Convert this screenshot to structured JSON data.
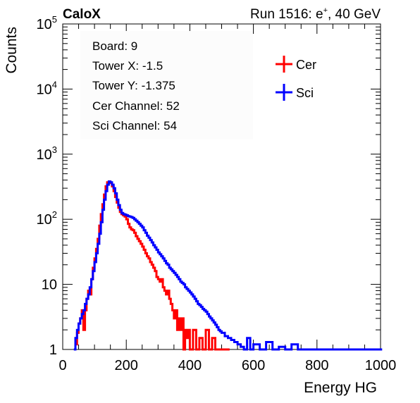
{
  "header": {
    "left": "CaloX",
    "right_prefix": "Run 1516: e",
    "right_sup": "+",
    "right_suffix": ", 40 GeV"
  },
  "info_box": [
    "Board: 9",
    "Tower X: -1.5",
    "Tower Y: -1.375",
    "Cer Channel: 52",
    "Sci Channel: 54"
  ],
  "chart_data": {
    "type": "line",
    "title": "",
    "xlabel": "Energy HG",
    "ylabel": "Counts",
    "xlim": [
      0,
      1000
    ],
    "ylim": [
      1,
      100000
    ],
    "ylog": true,
    "x_ticks": [
      "0",
      "200",
      "400",
      "600",
      "800",
      "1000"
    ],
    "y_ticks": [
      {
        "base": "1",
        "exp": ""
      },
      {
        "base": "10",
        "exp": ""
      },
      {
        "base": "10",
        "exp": "2"
      },
      {
        "base": "10",
        "exp": "3"
      },
      {
        "base": "10",
        "exp": "4"
      },
      {
        "base": "10",
        "exp": "5"
      }
    ],
    "legend_position": "top-right",
    "series": [
      {
        "name": "Cer",
        "color": "#ff0000",
        "points": [
          [
            40,
            1.2
          ],
          [
            45,
            1.8
          ],
          [
            50,
            2.5
          ],
          [
            55,
            3
          ],
          [
            60,
            4
          ],
          [
            65,
            2
          ],
          [
            70,
            4
          ],
          [
            75,
            6
          ],
          [
            80,
            8
          ],
          [
            85,
            7
          ],
          [
            90,
            12
          ],
          [
            95,
            18
          ],
          [
            100,
            25
          ],
          [
            105,
            35
          ],
          [
            110,
            50
          ],
          [
            115,
            80
          ],
          [
            120,
            120
          ],
          [
            125,
            170
          ],
          [
            130,
            240
          ],
          [
            135,
            320
          ],
          [
            140,
            370
          ],
          [
            145,
            380
          ],
          [
            150,
            360
          ],
          [
            155,
            320
          ],
          [
            160,
            270
          ],
          [
            165,
            220
          ],
          [
            170,
            180
          ],
          [
            175,
            150
          ],
          [
            180,
            130
          ],
          [
            185,
            120
          ],
          [
            190,
            115
          ],
          [
            195,
            110
          ],
          [
            200,
            100
          ],
          [
            205,
            85
          ],
          [
            210,
            75
          ],
          [
            215,
            70
          ],
          [
            220,
            68
          ],
          [
            225,
            62
          ],
          [
            230,
            55
          ],
          [
            235,
            50
          ],
          [
            240,
            46
          ],
          [
            245,
            42
          ],
          [
            250,
            38
          ],
          [
            255,
            34
          ],
          [
            260,
            30
          ],
          [
            265,
            27
          ],
          [
            270,
            25
          ],
          [
            275,
            22
          ],
          [
            280,
            20
          ],
          [
            285,
            18
          ],
          [
            290,
            16
          ],
          [
            295,
            13
          ],
          [
            300,
            12
          ],
          [
            305,
            11
          ],
          [
            310,
            12
          ],
          [
            315,
            9
          ],
          [
            320,
            8
          ],
          [
            325,
            7
          ],
          [
            330,
            8
          ],
          [
            335,
            6
          ],
          [
            340,
            5
          ],
          [
            345,
            4
          ],
          [
            350,
            3
          ],
          [
            355,
            4
          ],
          [
            360,
            2
          ],
          [
            365,
            3
          ],
          [
            370,
            2
          ],
          [
            375,
            3
          ],
          [
            380,
            1
          ],
          [
            385,
            2
          ],
          [
            390,
            1.5
          ],
          [
            395,
            2
          ],
          [
            400,
            1
          ],
          [
            410,
            2
          ],
          [
            420,
            1
          ],
          [
            430,
            1.5
          ],
          [
            440,
            1
          ],
          [
            450,
            2
          ],
          [
            460,
            1
          ],
          [
            470,
            1.5
          ],
          [
            480,
            1
          ],
          [
            500,
            1
          ],
          [
            520,
            1
          ]
        ]
      },
      {
        "name": "Sci",
        "color": "#0000ff",
        "points": [
          [
            35,
            1
          ],
          [
            40,
            1.5
          ],
          [
            45,
            2
          ],
          [
            50,
            2.5
          ],
          [
            55,
            3
          ],
          [
            60,
            3.5
          ],
          [
            65,
            4
          ],
          [
            70,
            5
          ],
          [
            75,
            6
          ],
          [
            80,
            7
          ],
          [
            85,
            9
          ],
          [
            90,
            12
          ],
          [
            95,
            16
          ],
          [
            100,
            22
          ],
          [
            105,
            30
          ],
          [
            110,
            42
          ],
          [
            115,
            60
          ],
          [
            120,
            90
          ],
          [
            125,
            140
          ],
          [
            130,
            200
          ],
          [
            135,
            270
          ],
          [
            140,
            340
          ],
          [
            145,
            380
          ],
          [
            150,
            370
          ],
          [
            155,
            340
          ],
          [
            160,
            300
          ],
          [
            165,
            250
          ],
          [
            170,
            200
          ],
          [
            175,
            165
          ],
          [
            180,
            140
          ],
          [
            185,
            125
          ],
          [
            190,
            120
          ],
          [
            195,
            118
          ],
          [
            200,
            115
          ],
          [
            205,
            112
          ],
          [
            210,
            110
          ],
          [
            215,
            108
          ],
          [
            220,
            105
          ],
          [
            225,
            100
          ],
          [
            230,
            95
          ],
          [
            235,
            90
          ],
          [
            240,
            85
          ],
          [
            245,
            80
          ],
          [
            250,
            75
          ],
          [
            255,
            68
          ],
          [
            260,
            62
          ],
          [
            265,
            56
          ],
          [
            270,
            52
          ],
          [
            275,
            48
          ],
          [
            280,
            44
          ],
          [
            285,
            40
          ],
          [
            290,
            37
          ],
          [
            295,
            34
          ],
          [
            300,
            31
          ],
          [
            305,
            29
          ],
          [
            310,
            27
          ],
          [
            315,
            25
          ],
          [
            320,
            23
          ],
          [
            325,
            21
          ],
          [
            330,
            20
          ],
          [
            335,
            18
          ],
          [
            340,
            17
          ],
          [
            345,
            16
          ],
          [
            350,
            15
          ],
          [
            355,
            14
          ],
          [
            360,
            13
          ],
          [
            365,
            12
          ],
          [
            370,
            11
          ],
          [
            375,
            10.5
          ],
          [
            380,
            10
          ],
          [
            385,
            9
          ],
          [
            390,
            8.5
          ],
          [
            395,
            8
          ],
          [
            400,
            7.5
          ],
          [
            405,
            7
          ],
          [
            410,
            6.5
          ],
          [
            415,
            6
          ],
          [
            420,
            5.5
          ],
          [
            425,
            5
          ],
          [
            430,
            4.8
          ],
          [
            435,
            4.5
          ],
          [
            440,
            4.2
          ],
          [
            445,
            4
          ],
          [
            450,
            3.8
          ],
          [
            455,
            3.5
          ],
          [
            460,
            3.2
          ],
          [
            465,
            3
          ],
          [
            470,
            2.8
          ],
          [
            475,
            2.6
          ],
          [
            480,
            2.4
          ],
          [
            485,
            2.2
          ],
          [
            490,
            2
          ],
          [
            495,
            1.9
          ],
          [
            500,
            1.8
          ],
          [
            510,
            1.6
          ],
          [
            520,
            1.5
          ],
          [
            530,
            1.4
          ],
          [
            540,
            1.3
          ],
          [
            550,
            1.2
          ],
          [
            560,
            1.1
          ],
          [
            570,
            1
          ],
          [
            580,
            1.5
          ],
          [
            590,
            1
          ],
          [
            600,
            1.2
          ],
          [
            620,
            1
          ],
          [
            640,
            1.3
          ],
          [
            660,
            1
          ],
          [
            680,
            1.1
          ],
          [
            700,
            1
          ],
          [
            720,
            1.2
          ],
          [
            740,
            1
          ],
          [
            760,
            1
          ],
          [
            800,
            1
          ],
          [
            850,
            1
          ],
          [
            900,
            1
          ],
          [
            950,
            1
          ],
          [
            1000,
            1
          ]
        ]
      }
    ]
  }
}
